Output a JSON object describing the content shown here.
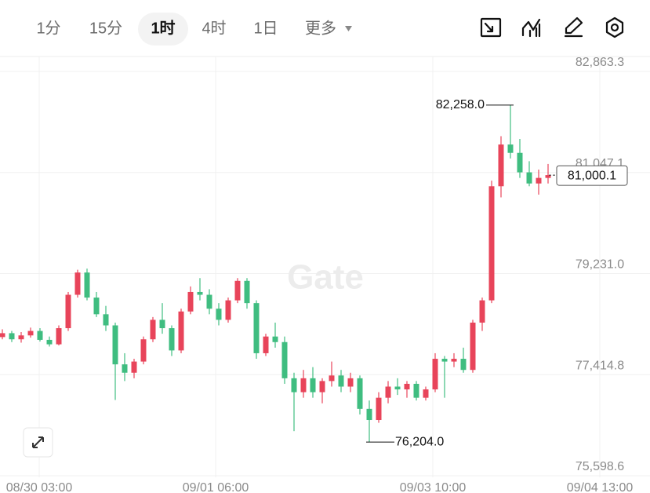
{
  "toolbar": {
    "intervals": [
      "1分",
      "15分",
      "1时",
      "4时",
      "1日"
    ],
    "more": "更多"
  },
  "watermark": "Gate",
  "chart_data": {
    "type": "candlestick",
    "ylim": [
      75598.6,
      82863.3
    ],
    "yticks": [
      {
        "value": 82863.3,
        "label": "82,863.3"
      },
      {
        "value": 81047.1,
        "label": "81,047.1"
      },
      {
        "value": 79231.0,
        "label": "79,231.0"
      },
      {
        "value": 77414.8,
        "label": "77,414.8"
      },
      {
        "value": 75598.6,
        "label": "75,598.6"
      }
    ],
    "xtick_labels": [
      "08/30 03:00",
      "09/01 06:00",
      "09/03 10:00",
      "09/04 13:00"
    ],
    "grid": true,
    "up_color": "#e8445a",
    "down_color": "#3fbd80",
    "open": [
      78090,
      78160,
      78050,
      78120,
      78200,
      78040,
      77960,
      78250,
      78850,
      79250,
      78800,
      78500,
      78300,
      77600,
      77450,
      77650,
      78050,
      78400,
      78250,
      77850,
      78550,
      78900,
      78850,
      78600,
      78400,
      78750,
      79100,
      78700,
      77800,
      78100,
      78000,
      77350,
      77100,
      77350,
      77100,
      77300,
      77400,
      77200,
      77350,
      76800,
      76600,
      77000,
      77200,
      77150,
      77250,
      77000,
      77150,
      77700,
      77650,
      77700,
      77500,
      78350,
      78750,
      80800,
      81550,
      81400,
      81050,
      80850,
      80950
    ],
    "high": [
      78230,
      78200,
      78180,
      78260,
      78250,
      78100,
      78300,
      78900,
      79300,
      79320,
      78900,
      78650,
      78350,
      77800,
      77700,
      78100,
      78450,
      78700,
      78300,
      78600,
      79000,
      79150,
      78950,
      78700,
      78800,
      79150,
      79150,
      78750,
      78150,
      78350,
      78100,
      77450,
      77500,
      77550,
      77350,
      77650,
      77500,
      77450,
      77400,
      76950,
      77100,
      77300,
      77350,
      77300,
      77300,
      77200,
      77800,
      77750,
      77800,
      77900,
      78400,
      78800,
      80900,
      81700,
      82258,
      81650,
      81250,
      81100,
      81200
    ],
    "low": [
      78050,
      78000,
      77990,
      78080,
      78010,
      77920,
      77940,
      78200,
      78800,
      78750,
      78450,
      78200,
      76960,
      77300,
      77350,
      77600,
      78000,
      78150,
      77750,
      77800,
      78500,
      78750,
      78500,
      78300,
      78350,
      78700,
      78600,
      77700,
      77750,
      77900,
      77250,
      76400,
      77000,
      77000,
      76900,
      77200,
      77100,
      77100,
      76700,
      76204,
      76550,
      76900,
      77050,
      77000,
      76950,
      76950,
      77100,
      77000,
      77550,
      77450,
      77450,
      78200,
      78700,
      80600,
      81300,
      80950,
      80800,
      80650,
      80850
    ],
    "close": [
      78160,
      78050,
      78120,
      78200,
      78040,
      77960,
      78250,
      78850,
      79250,
      78800,
      78500,
      78300,
      77600,
      77450,
      77650,
      78050,
      78400,
      78250,
      77850,
      78550,
      78900,
      78850,
      78600,
      78400,
      78750,
      79100,
      78700,
      77800,
      78100,
      78000,
      77350,
      77100,
      77350,
      77100,
      77300,
      77400,
      77200,
      77350,
      76800,
      76600,
      77000,
      77200,
      77150,
      77250,
      77000,
      77150,
      77700,
      77650,
      77700,
      77500,
      78350,
      78750,
      80800,
      81550,
      81400,
      81050,
      80850,
      80950,
      81000.1
    ],
    "annotations": [
      {
        "value": 82258.0,
        "label": "82,258.0"
      },
      {
        "value": 76204.0,
        "label": "76,204.0"
      }
    ],
    "last_price": {
      "value": 81000.1,
      "label": "81,000.1"
    }
  }
}
